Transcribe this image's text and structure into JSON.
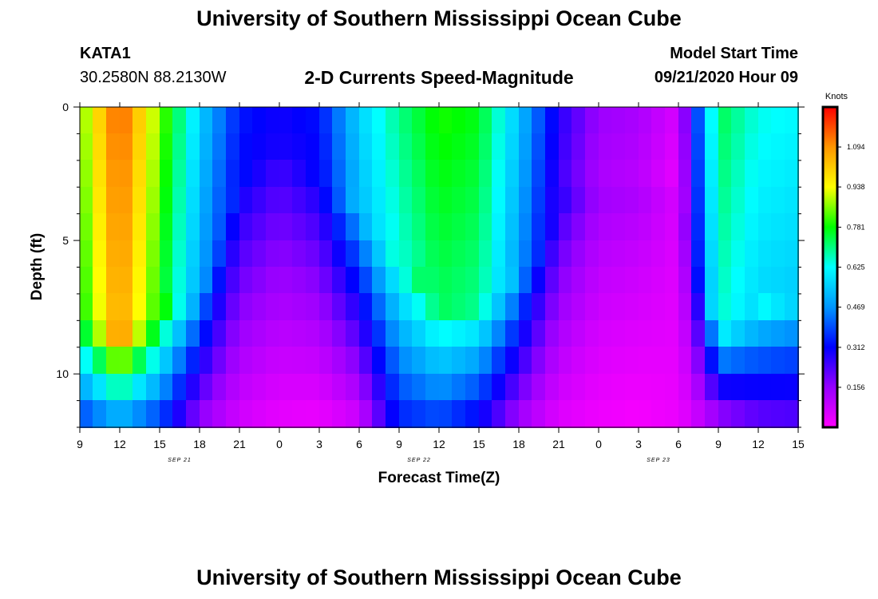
{
  "header": {
    "title": "University of Southern Mississippi Ocean Cube",
    "station": "KATA1",
    "coords": "30.2580N 88.2130W",
    "chart_title": "2-D Currents Speed-Magnitude",
    "model_label": "Model Start Time",
    "model_time": "09/21/2020 Hour 09"
  },
  "footer": {
    "title": "University of Southern Mississippi Ocean Cube"
  },
  "colorbar": {
    "unit": "Knots",
    "ticks": [
      "1.094",
      "0.938",
      "0.781",
      "0.625",
      "0.469",
      "0.312",
      "0.156"
    ],
    "colors": [
      "#ff00ff",
      "#9600ff",
      "#0000ff",
      "#0096ff",
      "#00ffff",
      "#00ff00",
      "#ffff00",
      "#ff9600",
      "#ff0000"
    ]
  },
  "chart_data": {
    "type": "heatmap",
    "xlabel": "Forecast Time(Z)",
    "ylabel": "Depth (ft)",
    "x_ticks": [
      "9",
      "12",
      "15",
      "18",
      "21",
      "0",
      "3",
      "6",
      "9",
      "12",
      "15",
      "18",
      "21",
      "0",
      "3",
      "6",
      "9",
      "12",
      "15"
    ],
    "date_labels": [
      "SEP 21",
      "SEP 22",
      "SEP 23"
    ],
    "y_ticks": [
      "0",
      "5",
      "10"
    ],
    "x_range_hours": [
      0,
      54
    ],
    "depth_range_ft": [
      0,
      12
    ],
    "value_range_knots": [
      0.0,
      1.25
    ],
    "profile_hours": [
      0,
      3,
      6,
      9,
      12,
      15,
      18,
      21,
      24,
      27,
      30,
      33,
      36,
      39,
      42,
      45,
      48,
      51,
      54
    ],
    "profile_surface_knots": [
      0.84,
      1.17,
      0.86,
      0.56,
      0.34,
      0.3,
      0.33,
      0.56,
      0.7,
      0.8,
      0.77,
      0.54,
      0.28,
      0.15,
      0.13,
      0.06,
      0.74,
      0.64,
      0.62
    ],
    "profile_bottom_knots": [
      0.35,
      0.44,
      0.35,
      0.14,
      0.06,
      0.03,
      0.02,
      0.06,
      0.33,
      0.36,
      0.28,
      0.12,
      0.04,
      0.02,
      0.01,
      0.03,
      0.1,
      0.18,
      0.2
    ],
    "profile_mixed_depth_ft": [
      7.5,
      8.5,
      7.5,
      6.5,
      2.5,
      1.0,
      2.5,
      3.5,
      5.5,
      7.0,
      7.0,
      6.0,
      3.5,
      3.0,
      3.0,
      3.0,
      8.0,
      7.5,
      7.0
    ]
  }
}
